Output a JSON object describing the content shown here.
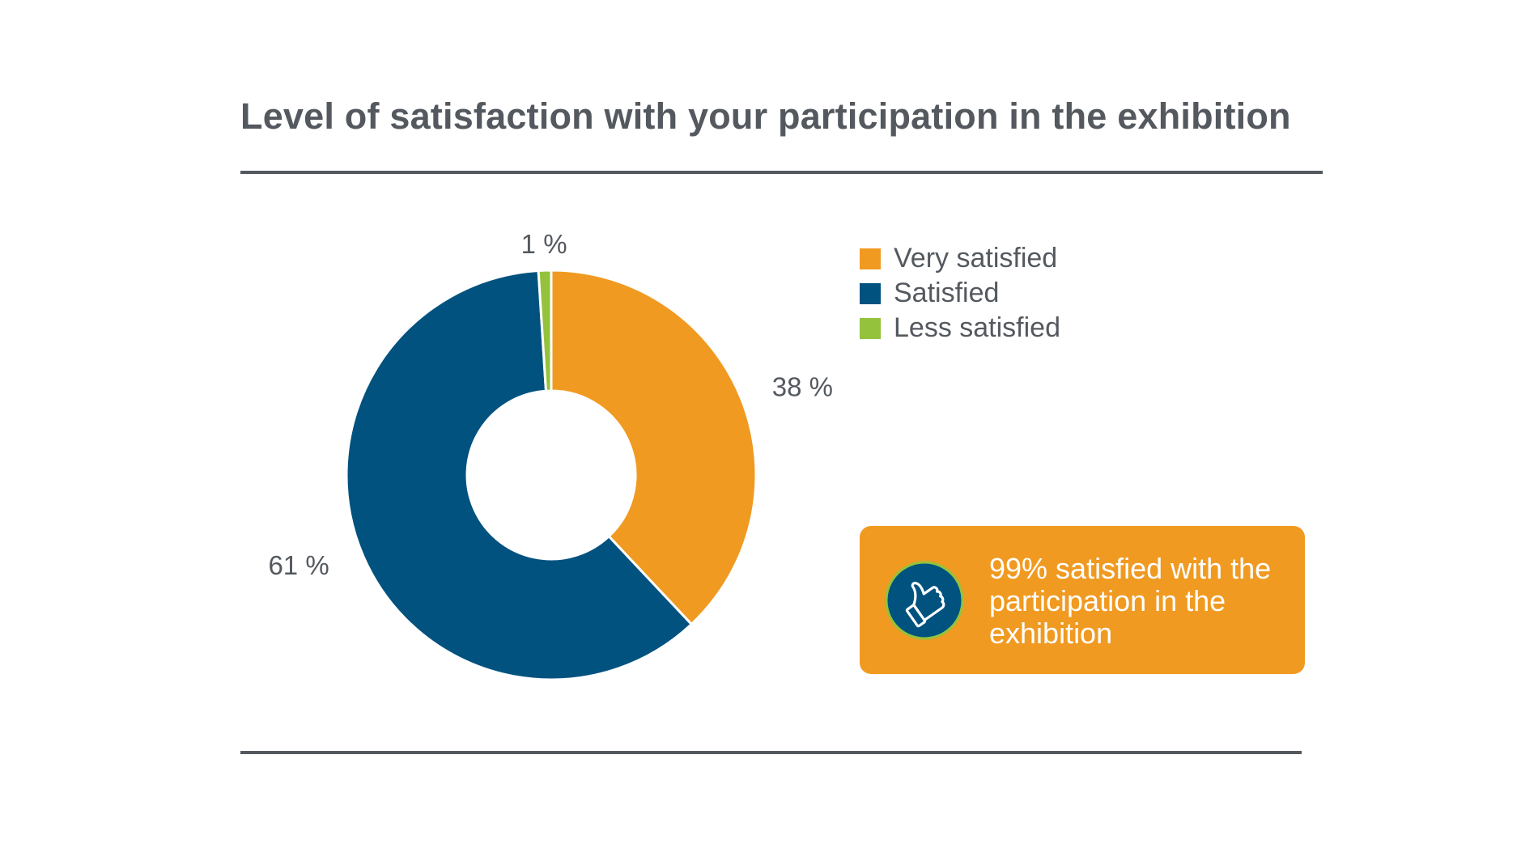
{
  "title": "Level of satisfaction with your participation in the exhibition",
  "chart_data": {
    "type": "pie",
    "variant": "donut",
    "title": "Level of satisfaction with your participation in the exhibition",
    "categories": [
      "Very satisfied",
      "Satisfied",
      "Less satisfied"
    ],
    "values": [
      38,
      61,
      1
    ],
    "unit": "%",
    "data_labels": [
      "38 %",
      "61 %",
      "1 %"
    ],
    "colors": [
      "#f09a21",
      "#01527f",
      "#94c23c"
    ],
    "legend_placement": "top-right"
  },
  "legend": {
    "items": [
      {
        "label": "Very satisfied",
        "color": "#f09a21"
      },
      {
        "label": "Satisfied",
        "color": "#01527f"
      },
      {
        "label": "Less satisfied",
        "color": "#94c23c"
      }
    ]
  },
  "callout": {
    "text": "99% satisfied with the participation in the exhibition",
    "icon": "thumbs-up-icon",
    "background": "#f09a21",
    "icon_background": "#01527f"
  }
}
